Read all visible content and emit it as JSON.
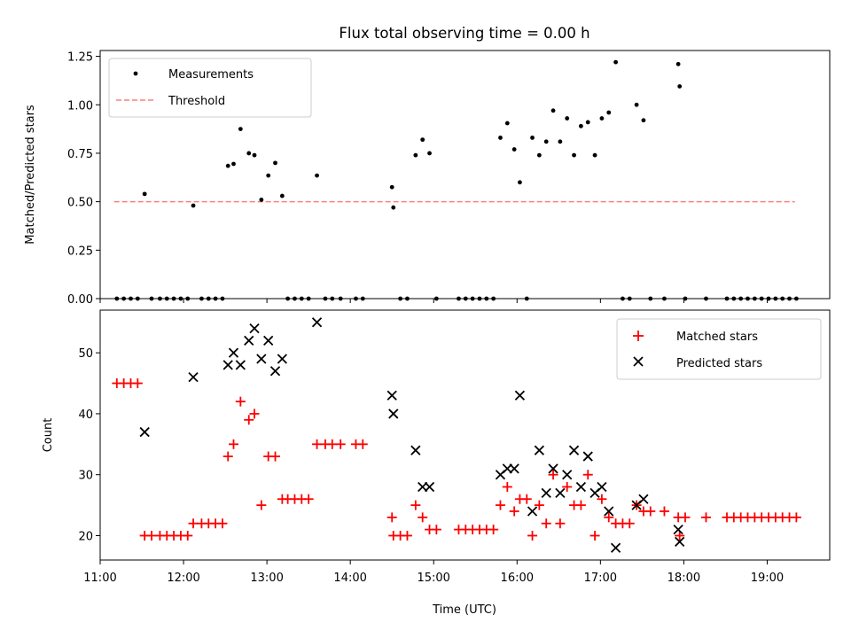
{
  "figure": {
    "title": "Flux total observing time = 0.00 h",
    "xlabel": "Time (UTC)"
  },
  "chart_data": [
    {
      "type": "scatter",
      "title": "Flux total observing time = 0.00 h",
      "ylabel": "Matched/Predicted stars",
      "xlim": [
        "11:00",
        "19:45"
      ],
      "ylim": [
        0,
        1.28
      ],
      "yticks": [
        0.0,
        0.25,
        0.5,
        0.75,
        1.0,
        1.25
      ],
      "legend": {
        "position": "top-left",
        "entries": [
          "Measurements",
          "Threshold"
        ]
      },
      "series": [
        {
          "name": "Measurements",
          "color": "#000000",
          "marker": "dot",
          "points": [
            [
              "11:12",
              0
            ],
            [
              "11:17",
              0
            ],
            [
              "11:22",
              0
            ],
            [
              "11:27",
              0
            ],
            [
              "11:32",
              0.54
            ],
            [
              "11:37",
              0
            ],
            [
              "11:43",
              0
            ],
            [
              "11:48",
              0
            ],
            [
              "11:53",
              0
            ],
            [
              "11:58",
              0
            ],
            [
              "12:03",
              0
            ],
            [
              "12:07",
              0.48
            ],
            [
              "12:13",
              0
            ],
            [
              "12:18",
              0
            ],
            [
              "12:23",
              0
            ],
            [
              "12:28",
              0
            ],
            [
              "12:32",
              0.685
            ],
            [
              "12:36",
              0.695
            ],
            [
              "12:41",
              0.875
            ],
            [
              "12:47",
              0.75
            ],
            [
              "12:51",
              0.74
            ],
            [
              "12:56",
              0.51
            ],
            [
              "13:01",
              0.635
            ],
            [
              "13:06",
              0.7
            ],
            [
              "13:11",
              0.53
            ],
            [
              "13:15",
              0
            ],
            [
              "13:20",
              0
            ],
            [
              "13:25",
              0
            ],
            [
              "13:30",
              0
            ],
            [
              "13:36",
              0.635
            ],
            [
              "13:42",
              0
            ],
            [
              "13:47",
              0
            ],
            [
              "13:53",
              0
            ],
            [
              "14:04",
              0
            ],
            [
              "14:09",
              0
            ],
            [
              "14:30",
              0.575
            ],
            [
              "14:31",
              0.47
            ],
            [
              "14:36",
              0
            ],
            [
              "14:41",
              0
            ],
            [
              "14:47",
              0.74
            ],
            [
              "14:52",
              0.82
            ],
            [
              "14:57",
              0.75
            ],
            [
              "15:02",
              0
            ],
            [
              "15:18",
              0
            ],
            [
              "15:23",
              0
            ],
            [
              "15:28",
              0
            ],
            [
              "15:33",
              0
            ],
            [
              "15:38",
              0
            ],
            [
              "15:43",
              0
            ],
            [
              "15:48",
              0.83
            ],
            [
              "15:53",
              0.905
            ],
            [
              "15:58",
              0.77
            ],
            [
              "16:02",
              0.6
            ],
            [
              "16:07",
              0
            ],
            [
              "16:11",
              0.83
            ],
            [
              "16:16",
              0.74
            ],
            [
              "16:21",
              0.81
            ],
            [
              "16:26",
              0.97
            ],
            [
              "16:31",
              0.81
            ],
            [
              "16:36",
              0.93
            ],
            [
              "16:41",
              0.74
            ],
            [
              "16:46",
              0.89
            ],
            [
              "16:51",
              0.91
            ],
            [
              "16:56",
              0.74
            ],
            [
              "17:01",
              0.93
            ],
            [
              "17:06",
              0.96
            ],
            [
              "17:11",
              1.22
            ],
            [
              "17:16",
              0
            ],
            [
              "17:21",
              0
            ],
            [
              "17:26",
              1.0
            ],
            [
              "17:31",
              0.92
            ],
            [
              "17:36",
              0
            ],
            [
              "17:46",
              0
            ],
            [
              "17:56",
              1.21
            ],
            [
              "17:57",
              1.095
            ],
            [
              "18:01",
              0
            ],
            [
              "18:16",
              0
            ],
            [
              "18:31",
              0
            ],
            [
              "18:36",
              0
            ],
            [
              "18:41",
              0
            ],
            [
              "18:46",
              0
            ],
            [
              "18:51",
              0
            ],
            [
              "18:56",
              0
            ],
            [
              "19:01",
              0
            ],
            [
              "19:06",
              0
            ],
            [
              "19:11",
              0
            ],
            [
              "19:16",
              0
            ],
            [
              "19:21",
              0
            ]
          ]
        },
        {
          "name": "Threshold",
          "color": "#ff7f7f",
          "style": "dashed",
          "points": [
            [
              "11:10",
              0.5
            ],
            [
              "19:20",
              0.5
            ]
          ]
        }
      ]
    },
    {
      "type": "scatter",
      "ylabel": "Count",
      "xlabel": "Time (UTC)",
      "xlim": [
        "11:00",
        "19:45"
      ],
      "ylim": [
        16,
        57
      ],
      "yticks": [
        20,
        30,
        40,
        50
      ],
      "xticks": [
        "11:00",
        "12:00",
        "13:00",
        "14:00",
        "15:00",
        "16:00",
        "17:00",
        "18:00",
        "19:00"
      ],
      "legend": {
        "position": "top-right",
        "entries": [
          "Matched stars",
          "Predicted stars"
        ]
      },
      "series": [
        {
          "name": "Matched stars",
          "color": "#ff0000",
          "marker": "plus",
          "points": [
            [
              "11:12",
              45
            ],
            [
              "11:17",
              45
            ],
            [
              "11:22",
              45
            ],
            [
              "11:27",
              45
            ],
            [
              "11:32",
              20
            ],
            [
              "11:37",
              20
            ],
            [
              "11:43",
              20
            ],
            [
              "11:48",
              20
            ],
            [
              "11:53",
              20
            ],
            [
              "11:58",
              20
            ],
            [
              "12:03",
              20
            ],
            [
              "12:07",
              22
            ],
            [
              "12:13",
              22
            ],
            [
              "12:18",
              22
            ],
            [
              "12:23",
              22
            ],
            [
              "12:28",
              22
            ],
            [
              "12:32",
              33
            ],
            [
              "12:36",
              35
            ],
            [
              "12:41",
              42
            ],
            [
              "12:47",
              39
            ],
            [
              "12:51",
              40
            ],
            [
              "12:56",
              25
            ],
            [
              "13:01",
              33
            ],
            [
              "13:06",
              33
            ],
            [
              "13:11",
              26
            ],
            [
              "13:15",
              26
            ],
            [
              "13:20",
              26
            ],
            [
              "13:25",
              26
            ],
            [
              "13:30",
              26
            ],
            [
              "13:36",
              35
            ],
            [
              "13:42",
              35
            ],
            [
              "13:47",
              35
            ],
            [
              "13:53",
              35
            ],
            [
              "14:04",
              35
            ],
            [
              "14:09",
              35
            ],
            [
              "14:30",
              23
            ],
            [
              "14:31",
              20
            ],
            [
              "14:36",
              20
            ],
            [
              "14:41",
              20
            ],
            [
              "14:47",
              25
            ],
            [
              "14:52",
              23
            ],
            [
              "14:57",
              21
            ],
            [
              "15:02",
              21
            ],
            [
              "15:18",
              21
            ],
            [
              "15:23",
              21
            ],
            [
              "15:28",
              21
            ],
            [
              "15:33",
              21
            ],
            [
              "15:38",
              21
            ],
            [
              "15:43",
              21
            ],
            [
              "15:48",
              25
            ],
            [
              "15:53",
              28
            ],
            [
              "15:58",
              24
            ],
            [
              "16:02",
              26
            ],
            [
              "16:07",
              26
            ],
            [
              "16:11",
              20
            ],
            [
              "16:16",
              25
            ],
            [
              "16:21",
              22
            ],
            [
              "16:26",
              30
            ],
            [
              "16:31",
              22
            ],
            [
              "16:36",
              28
            ],
            [
              "16:41",
              25
            ],
            [
              "16:46",
              25
            ],
            [
              "16:51",
              30
            ],
            [
              "16:56",
              20
            ],
            [
              "17:01",
              26
            ],
            [
              "17:06",
              23
            ],
            [
              "17:11",
              22
            ],
            [
              "17:16",
              22
            ],
            [
              "17:21",
              22
            ],
            [
              "17:26",
              25
            ],
            [
              "17:31",
              24
            ],
            [
              "17:36",
              24
            ],
            [
              "17:46",
              24
            ],
            [
              "17:56",
              23
            ],
            [
              "17:57",
              20
            ],
            [
              "18:01",
              23
            ],
            [
              "18:16",
              23
            ],
            [
              "18:31",
              23
            ],
            [
              "18:36",
              23
            ],
            [
              "18:41",
              23
            ],
            [
              "18:46",
              23
            ],
            [
              "18:51",
              23
            ],
            [
              "18:56",
              23
            ],
            [
              "19:01",
              23
            ],
            [
              "19:06",
              23
            ],
            [
              "19:11",
              23
            ],
            [
              "19:16",
              23
            ],
            [
              "19:21",
              23
            ]
          ]
        },
        {
          "name": "Predicted stars",
          "color": "#000000",
          "marker": "x",
          "points": [
            [
              "11:32",
              37
            ],
            [
              "12:07",
              46
            ],
            [
              "12:32",
              48
            ],
            [
              "12:36",
              50
            ],
            [
              "12:41",
              48
            ],
            [
              "12:47",
              52
            ],
            [
              "12:51",
              54
            ],
            [
              "12:56",
              49
            ],
            [
              "13:01",
              52
            ],
            [
              "13:06",
              47
            ],
            [
              "13:11",
              49
            ],
            [
              "13:36",
              55
            ],
            [
              "14:30",
              43
            ],
            [
              "14:31",
              40
            ],
            [
              "14:47",
              34
            ],
            [
              "14:52",
              28
            ],
            [
              "14:57",
              28
            ],
            [
              "15:48",
              30
            ],
            [
              "15:53",
              31
            ],
            [
              "15:58",
              31
            ],
            [
              "16:02",
              43
            ],
            [
              "16:11",
              24
            ],
            [
              "16:16",
              34
            ],
            [
              "16:21",
              27
            ],
            [
              "16:26",
              31
            ],
            [
              "16:31",
              27
            ],
            [
              "16:36",
              30
            ],
            [
              "16:41",
              34
            ],
            [
              "16:46",
              28
            ],
            [
              "16:51",
              33
            ],
            [
              "16:56",
              27
            ],
            [
              "17:01",
              28
            ],
            [
              "17:06",
              24
            ],
            [
              "17:11",
              18
            ],
            [
              "17:26",
              25
            ],
            [
              "17:31",
              26
            ],
            [
              "17:56",
              21
            ],
            [
              "17:57",
              19
            ]
          ]
        }
      ]
    }
  ]
}
